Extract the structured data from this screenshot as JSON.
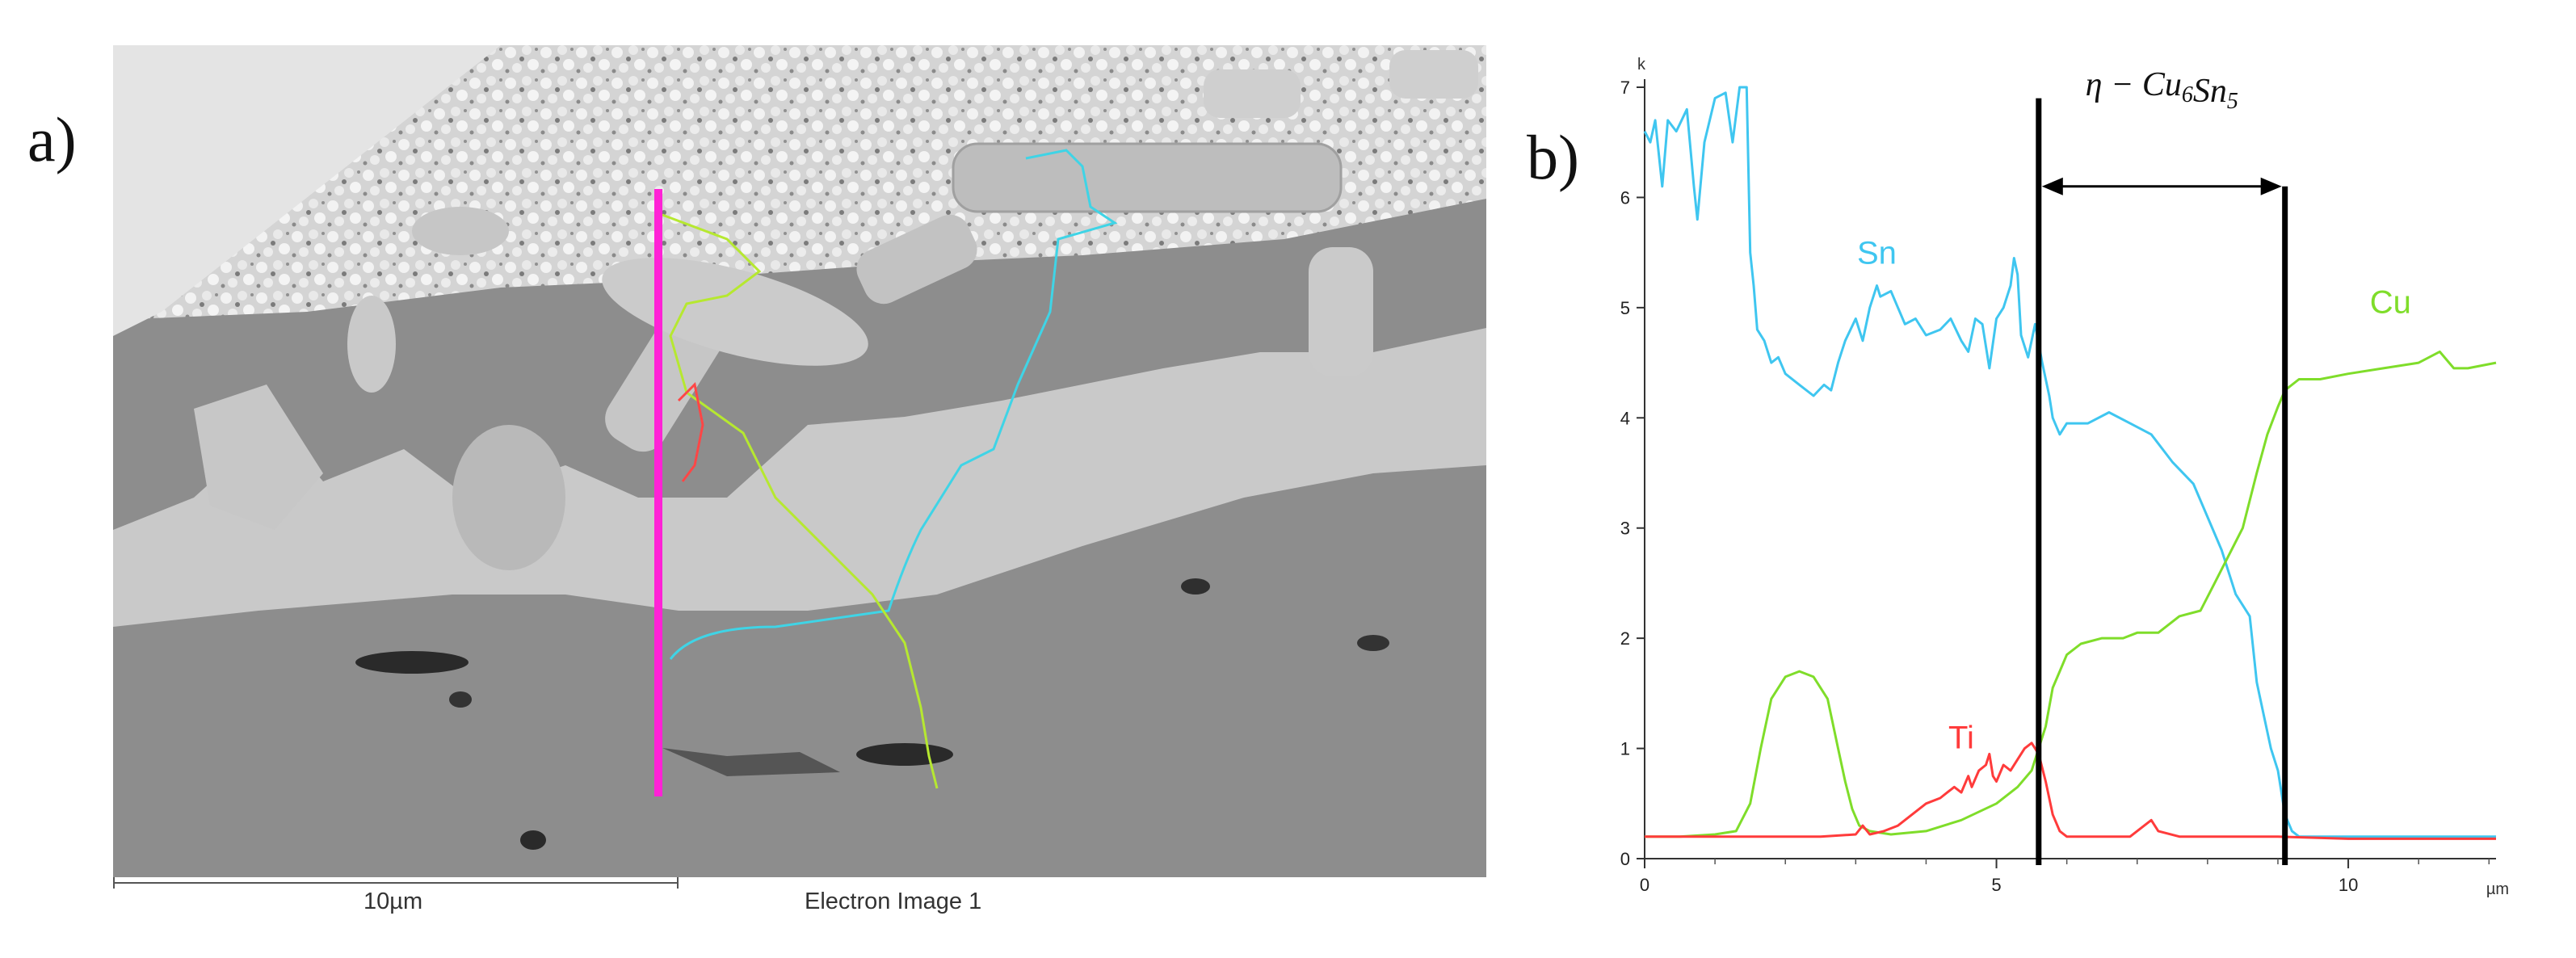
{
  "panel_a": {
    "label": "a)",
    "scale_bar_text": "10µm",
    "caption": "Electron Image 1",
    "colors": {
      "line_marker": "#ff22d6",
      "sn_trace": "#3fd4e6",
      "cu_trace": "#b6e830",
      "ti_trace": "#ff4646"
    }
  },
  "panel_b": {
    "label": "b)"
  },
  "chart_data": {
    "type": "line",
    "y_unit_label": "k",
    "x_unit_label": "µm",
    "xlim": [
      0,
      12.1
    ],
    "ylim": [
      0,
      7
    ],
    "x_ticks": [
      0,
      5,
      10
    ],
    "y_ticks": [
      0,
      1,
      2,
      3,
      4,
      5,
      6,
      7
    ],
    "grid": false,
    "legend": "none",
    "annotation": {
      "text_eta": "η",
      "text_minus": " − ",
      "text_cu": "Cu",
      "sub_cu": "6",
      "text_sn": "Sn",
      "sub_sn": "5",
      "x_start": 5.6,
      "x_end": 9.1
    },
    "series": [
      {
        "name": "Sn",
        "color": "#3fc6f0",
        "label_at": [
          3.3,
          5.4
        ],
        "x": [
          0,
          0.08,
          0.15,
          0.25,
          0.33,
          0.45,
          0.6,
          0.7,
          0.75,
          0.85,
          1.0,
          1.15,
          1.25,
          1.35,
          1.45,
          1.5,
          1.55,
          1.6,
          1.7,
          1.8,
          1.9,
          2.0,
          2.2,
          2.4,
          2.55,
          2.65,
          2.75,
          2.85,
          3.0,
          3.1,
          3.2,
          3.3,
          3.35,
          3.5,
          3.6,
          3.7,
          3.85,
          4.0,
          4.2,
          4.35,
          4.5,
          4.6,
          4.7,
          4.8,
          4.9,
          5.0,
          5.1,
          5.2,
          5.25,
          5.3,
          5.35,
          5.45,
          5.55,
          5.65,
          5.75,
          5.8,
          5.9,
          6.0,
          6.3,
          6.6,
          6.9,
          7.2,
          7.5,
          7.8,
          8.0,
          8.2,
          8.4,
          8.6,
          8.7,
          8.8,
          8.9,
          9.0,
          9.1,
          9.2,
          9.3,
          9.5,
          10.0,
          10.5,
          11.0,
          11.5,
          12.0,
          12.1
        ],
        "y": [
          6.6,
          6.5,
          6.7,
          6.1,
          6.7,
          6.6,
          6.8,
          6.1,
          5.8,
          6.5,
          6.9,
          6.95,
          6.5,
          7.0,
          7.0,
          5.5,
          5.2,
          4.8,
          4.7,
          4.5,
          4.55,
          4.4,
          4.3,
          4.2,
          4.3,
          4.25,
          4.5,
          4.7,
          4.9,
          4.7,
          5.0,
          5.2,
          5.1,
          5.15,
          5.0,
          4.85,
          4.9,
          4.75,
          4.8,
          4.9,
          4.7,
          4.6,
          4.9,
          4.85,
          4.45,
          4.9,
          5.0,
          5.2,
          5.45,
          5.3,
          4.75,
          4.55,
          4.85,
          4.5,
          4.2,
          4.0,
          3.85,
          3.95,
          3.95,
          4.05,
          3.95,
          3.85,
          3.6,
          3.4,
          3.1,
          2.8,
          2.4,
          2.2,
          1.6,
          1.3,
          1.0,
          0.8,
          0.4,
          0.25,
          0.2,
          0.2,
          0.2,
          0.2,
          0.2,
          0.2,
          0.2,
          0.2
        ]
      },
      {
        "name": "Cu",
        "color": "#7fdd2a",
        "label_at": [
          10.6,
          4.95
        ],
        "x": [
          0,
          0.5,
          1.0,
          1.3,
          1.5,
          1.65,
          1.8,
          2.0,
          2.2,
          2.4,
          2.6,
          2.75,
          2.85,
          2.95,
          3.05,
          3.2,
          3.5,
          4.0,
          4.5,
          5.0,
          5.3,
          5.5,
          5.7,
          5.8,
          5.9,
          6.0,
          6.2,
          6.5,
          6.8,
          7.0,
          7.3,
          7.6,
          7.9,
          8.1,
          8.3,
          8.5,
          8.7,
          8.85,
          9.0,
          9.1,
          9.3,
          9.6,
          10.0,
          10.5,
          11.0,
          11.3,
          11.5,
          11.7,
          12.1
        ],
        "y": [
          0.2,
          0.2,
          0.22,
          0.25,
          0.5,
          1.0,
          1.45,
          1.65,
          1.7,
          1.65,
          1.45,
          1.0,
          0.7,
          0.45,
          0.3,
          0.25,
          0.22,
          0.25,
          0.35,
          0.5,
          0.65,
          0.8,
          1.2,
          1.55,
          1.7,
          1.85,
          1.95,
          2.0,
          2.0,
          2.05,
          2.05,
          2.2,
          2.25,
          2.5,
          2.75,
          3.0,
          3.5,
          3.85,
          4.1,
          4.25,
          4.35,
          4.35,
          4.4,
          4.45,
          4.5,
          4.6,
          4.45,
          4.45,
          4.5
        ]
      },
      {
        "name": "Ti",
        "color": "#ff3b3b",
        "label_at": [
          4.5,
          1.0
        ],
        "x": [
          0,
          0.5,
          1.0,
          1.5,
          2.0,
          2.5,
          3.0,
          3.1,
          3.2,
          3.4,
          3.6,
          3.8,
          4.0,
          4.2,
          4.3,
          4.4,
          4.5,
          4.6,
          4.65,
          4.75,
          4.85,
          4.9,
          4.95,
          5.0,
          5.1,
          5.2,
          5.3,
          5.4,
          5.5,
          5.6,
          5.7,
          5.8,
          5.9,
          6.0,
          6.3,
          6.6,
          6.9,
          7.1,
          7.2,
          7.3,
          7.6,
          8.0,
          9.0,
          10.0,
          11.0,
          12.1
        ],
        "y": [
          0.2,
          0.2,
          0.2,
          0.2,
          0.2,
          0.2,
          0.22,
          0.3,
          0.22,
          0.25,
          0.3,
          0.4,
          0.5,
          0.55,
          0.6,
          0.65,
          0.6,
          0.75,
          0.65,
          0.8,
          0.85,
          0.95,
          0.75,
          0.7,
          0.85,
          0.8,
          0.9,
          1.0,
          1.05,
          0.95,
          0.7,
          0.4,
          0.25,
          0.2,
          0.2,
          0.2,
          0.2,
          0.3,
          0.35,
          0.25,
          0.2,
          0.2,
          0.2,
          0.18,
          0.18,
          0.18
        ]
      }
    ]
  }
}
